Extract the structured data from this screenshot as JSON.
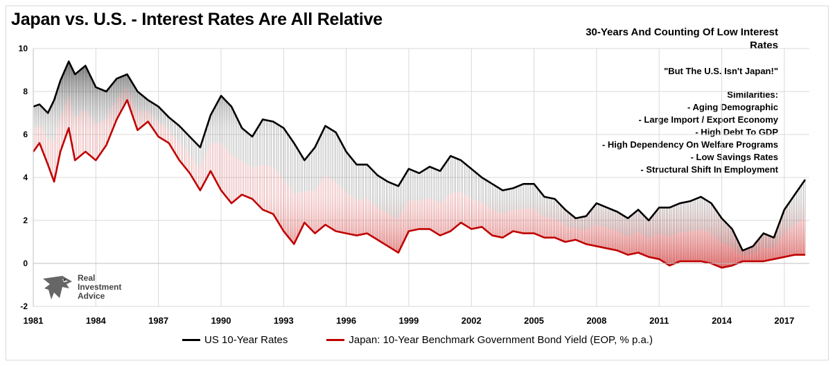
{
  "title": "Japan vs. U.S. - Interest Rates Are All Relative",
  "annotations": {
    "subtitle_lines": [
      "30-Years And Counting Of Low Interest",
      "Rates"
    ],
    "quote": "\"But The U.S. Isn't Japan!\"",
    "similarities_heading": "Similarities:",
    "similarities": [
      "- Aging Demographic",
      "- Large Import /  Export Economy",
      "- High Debt To GDP",
      "- High Dependency On Welfare Programs",
      "- Low Savings Rates",
      "- Structural Shift In Employment"
    ]
  },
  "logo": {
    "icon": "eagle-head-icon",
    "lines": [
      "Real",
      "Investment",
      "Advice"
    ]
  },
  "colors": {
    "us": "#000000",
    "japan": "#c00000",
    "grid": "#d9d9d9"
  },
  "chart_data": {
    "type": "line",
    "title": "Japan vs. U.S. - Interest Rates Are All Relative",
    "xlabel": "",
    "ylabel": "",
    "xlim": [
      1981,
      2018.2
    ],
    "ylim": [
      -2,
      10
    ],
    "y_ticks": [
      -2,
      0,
      2,
      4,
      6,
      8,
      10
    ],
    "x_ticks": [
      1981,
      1984,
      1987,
      1990,
      1993,
      1996,
      1999,
      2002,
      2005,
      2008,
      2011,
      2014,
      2017
    ],
    "grid": true,
    "legend_position": "bottom",
    "fill_between_series": true,
    "series": [
      {
        "name": "US 10-Year Rates",
        "color": "#000000",
        "x": [
          1981.0,
          1981.3,
          1981.7,
          1982.0,
          1982.3,
          1982.7,
          1983.0,
          1983.5,
          1984.0,
          1984.5,
          1985.0,
          1985.5,
          1986.0,
          1986.5,
          1987.0,
          1987.5,
          1988.0,
          1988.5,
          1989.0,
          1989.5,
          1990.0,
          1990.5,
          1991.0,
          1991.5,
          1992.0,
          1992.5,
          1993.0,
          1993.5,
          1994.0,
          1994.5,
          1995.0,
          1995.5,
          1996.0,
          1996.5,
          1997.0,
          1997.5,
          1998.0,
          1998.5,
          1999.0,
          1999.5,
          2000.0,
          2000.5,
          2001.0,
          2001.5,
          2002.0,
          2002.5,
          2003.0,
          2003.5,
          2004.0,
          2004.5,
          2005.0,
          2005.5,
          2006.0,
          2006.5,
          2007.0,
          2007.5,
          2008.0,
          2008.5,
          2009.0,
          2009.5,
          2010.0,
          2010.5,
          2011.0,
          2011.5,
          2012.0,
          2012.5,
          2013.0,
          2013.5,
          2014.0,
          2014.5,
          2015.0,
          2015.5,
          2016.0,
          2016.5,
          2017.0,
          2017.5,
          2018.0
        ],
        "values": [
          7.3,
          7.4,
          7.0,
          7.6,
          8.5,
          9.4,
          8.8,
          9.2,
          8.2,
          8.0,
          8.6,
          8.8,
          8.0,
          7.6,
          7.3,
          6.8,
          6.4,
          5.9,
          5.4,
          6.9,
          7.8,
          7.3,
          6.3,
          5.9,
          6.7,
          6.6,
          6.3,
          5.6,
          4.8,
          5.4,
          6.4,
          6.1,
          5.2,
          4.6,
          4.6,
          4.1,
          3.8,
          3.6,
          4.4,
          4.2,
          4.5,
          4.3,
          5.0,
          4.8,
          4.4,
          4.0,
          3.7,
          3.4,
          3.5,
          3.7,
          3.7,
          3.1,
          3.0,
          2.5,
          2.1,
          2.2,
          2.8,
          2.6,
          2.4,
          2.1,
          2.5,
          2.0,
          2.6,
          2.6,
          2.8,
          2.9,
          3.1,
          2.8,
          2.1,
          1.6,
          0.6,
          0.8,
          1.4,
          1.2,
          2.5,
          3.2,
          3.9
        ]
      },
      {
        "name": "Japan: 10-Year Benchmark Government Bond Yield (EOP, % p.a.)",
        "color": "#c00000",
        "x": [
          1981.0,
          1981.3,
          1981.7,
          1982.0,
          1982.3,
          1982.7,
          1983.0,
          1983.5,
          1984.0,
          1984.5,
          1985.0,
          1985.5,
          1986.0,
          1986.5,
          1987.0,
          1987.5,
          1988.0,
          1988.5,
          1989.0,
          1989.5,
          1990.0,
          1990.5,
          1991.0,
          1991.5,
          1992.0,
          1992.5,
          1993.0,
          1993.5,
          1994.0,
          1994.5,
          1995.0,
          1995.5,
          1996.0,
          1996.5,
          1997.0,
          1997.5,
          1998.0,
          1998.5,
          1999.0,
          1999.5,
          2000.0,
          2000.5,
          2001.0,
          2001.5,
          2002.0,
          2002.5,
          2003.0,
          2003.5,
          2004.0,
          2004.5,
          2005.0,
          2005.5,
          2006.0,
          2006.5,
          2007.0,
          2007.5,
          2008.0,
          2008.5,
          2009.0,
          2009.5,
          2010.0,
          2010.5,
          2011.0,
          2011.5,
          2012.0,
          2012.5,
          2013.0,
          2013.5,
          2014.0,
          2014.5,
          2015.0,
          2015.5,
          2016.0,
          2016.5,
          2017.0,
          2017.5,
          2018.0
        ],
        "values": [
          5.2,
          5.6,
          4.6,
          3.8,
          5.2,
          6.3,
          4.8,
          5.2,
          4.8,
          5.5,
          6.7,
          7.6,
          6.2,
          6.6,
          5.9,
          5.6,
          4.8,
          4.2,
          3.4,
          4.3,
          3.4,
          2.8,
          3.2,
          3.0,
          2.5,
          2.3,
          1.5,
          0.9,
          1.9,
          1.4,
          1.8,
          1.5,
          1.4,
          1.3,
          1.4,
          1.1,
          0.8,
          0.5,
          1.5,
          1.6,
          1.6,
          1.3,
          1.5,
          1.9,
          1.6,
          1.7,
          1.3,
          1.2,
          1.5,
          1.4,
          1.4,
          1.2,
          1.2,
          1.0,
          1.1,
          0.9,
          0.8,
          0.7,
          0.6,
          0.4,
          0.5,
          0.3,
          0.2,
          -0.1,
          0.1,
          0.1,
          0.1,
          0.0,
          -0.2,
          -0.1,
          0.1,
          0.1,
          0.1,
          0.2,
          0.3,
          0.4,
          0.4
        ]
      }
    ]
  }
}
